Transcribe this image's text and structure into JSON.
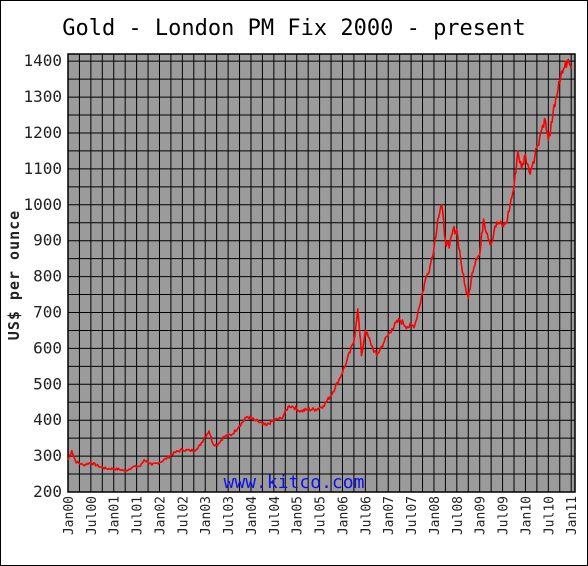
{
  "chart_data": {
    "type": "line",
    "title": "Gold - London PM Fix 2000 - present",
    "xlabel": "",
    "ylabel": "US$ per ounce",
    "watermark": "www.kitco.com",
    "ylim": [
      200,
      1420
    ],
    "xlim": [
      "2000-01",
      "2011-02"
    ],
    "grid": true,
    "legend": "none",
    "y_ticks": [
      200,
      300,
      400,
      500,
      600,
      700,
      800,
      900,
      1000,
      1100,
      1200,
      1300,
      1400
    ],
    "x_ticks": [
      "Jan00",
      "Jul00",
      "Jan01",
      "Jul01",
      "Jan02",
      "Jul02",
      "Jan03",
      "Jul03",
      "Jan04",
      "Jul04",
      "Jan05",
      "Jul05",
      "Jan06",
      "Jul06",
      "Jan07",
      "Jul07",
      "Jan08",
      "Jul08",
      "Jan09",
      "Jul09",
      "Jan10",
      "Jul10",
      "Jan11"
    ],
    "series": [
      {
        "name": "",
        "color": "#ff0000",
        "x": [
          "2000-01",
          "2000-02",
          "2000-03",
          "2000-05",
          "2000-07",
          "2000-09",
          "2000-11",
          "2001-01",
          "2001-03",
          "2001-04",
          "2001-06",
          "2001-08",
          "2001-09",
          "2001-11",
          "2002-01",
          "2002-03",
          "2002-05",
          "2002-07",
          "2002-09",
          "2002-11",
          "2003-01",
          "2003-02",
          "2003-03",
          "2003-04",
          "2003-06",
          "2003-08",
          "2003-10",
          "2003-12",
          "2004-02",
          "2004-04",
          "2004-05",
          "2004-07",
          "2004-09",
          "2004-11",
          "2004-12",
          "2005-02",
          "2005-04",
          "2005-06",
          "2005-08",
          "2005-10",
          "2005-12",
          "2006-02",
          "2006-04",
          "2006-05",
          "2006-06",
          "2006-07",
          "2006-09",
          "2006-10",
          "2006-12",
          "2007-02",
          "2007-04",
          "2007-06",
          "2007-08",
          "2007-09",
          "2007-11",
          "2007-12",
          "2008-01",
          "2008-02",
          "2008-03",
          "2008-04",
          "2008-05",
          "2008-06",
          "2008-07",
          "2008-08",
          "2008-09",
          "2008-10",
          "2008-11",
          "2008-12",
          "2009-01",
          "2009-02",
          "2009-03",
          "2009-04",
          "2009-05",
          "2009-06",
          "2009-07",
          "2009-08",
          "2009-09",
          "2009-10",
          "2009-11",
          "2009-12",
          "2010-01",
          "2010-02",
          "2010-03",
          "2010-04",
          "2010-05",
          "2010-06",
          "2010-07",
          "2010-08",
          "2010-09",
          "2010-10",
          "2010-11",
          "2010-12",
          "2011-01"
        ],
        "values": [
          290,
          315,
          285,
          275,
          282,
          272,
          265,
          265,
          262,
          258,
          270,
          272,
          290,
          275,
          282,
          295,
          310,
          318,
          315,
          320,
          355,
          370,
          335,
          330,
          355,
          360,
          385,
          410,
          400,
          390,
          385,
          400,
          405,
          440,
          438,
          425,
          430,
          430,
          440,
          470,
          510,
          560,
          620,
          710,
          580,
          650,
          600,
          580,
          620,
          655,
          680,
          660,
          665,
          710,
          800,
          830,
          880,
          960,
          1000,
          900,
          880,
          930,
          930,
          850,
          780,
          740,
          810,
          850,
          860,
          960,
          920,
          890,
          940,
          950,
          940,
          950,
          1000,
          1050,
          1150,
          1100,
          1140,
          1090,
          1120,
          1160,
          1200,
          1240,
          1180,
          1230,
          1300,
          1340,
          1380,
          1400,
          1380
        ]
      }
    ]
  }
}
